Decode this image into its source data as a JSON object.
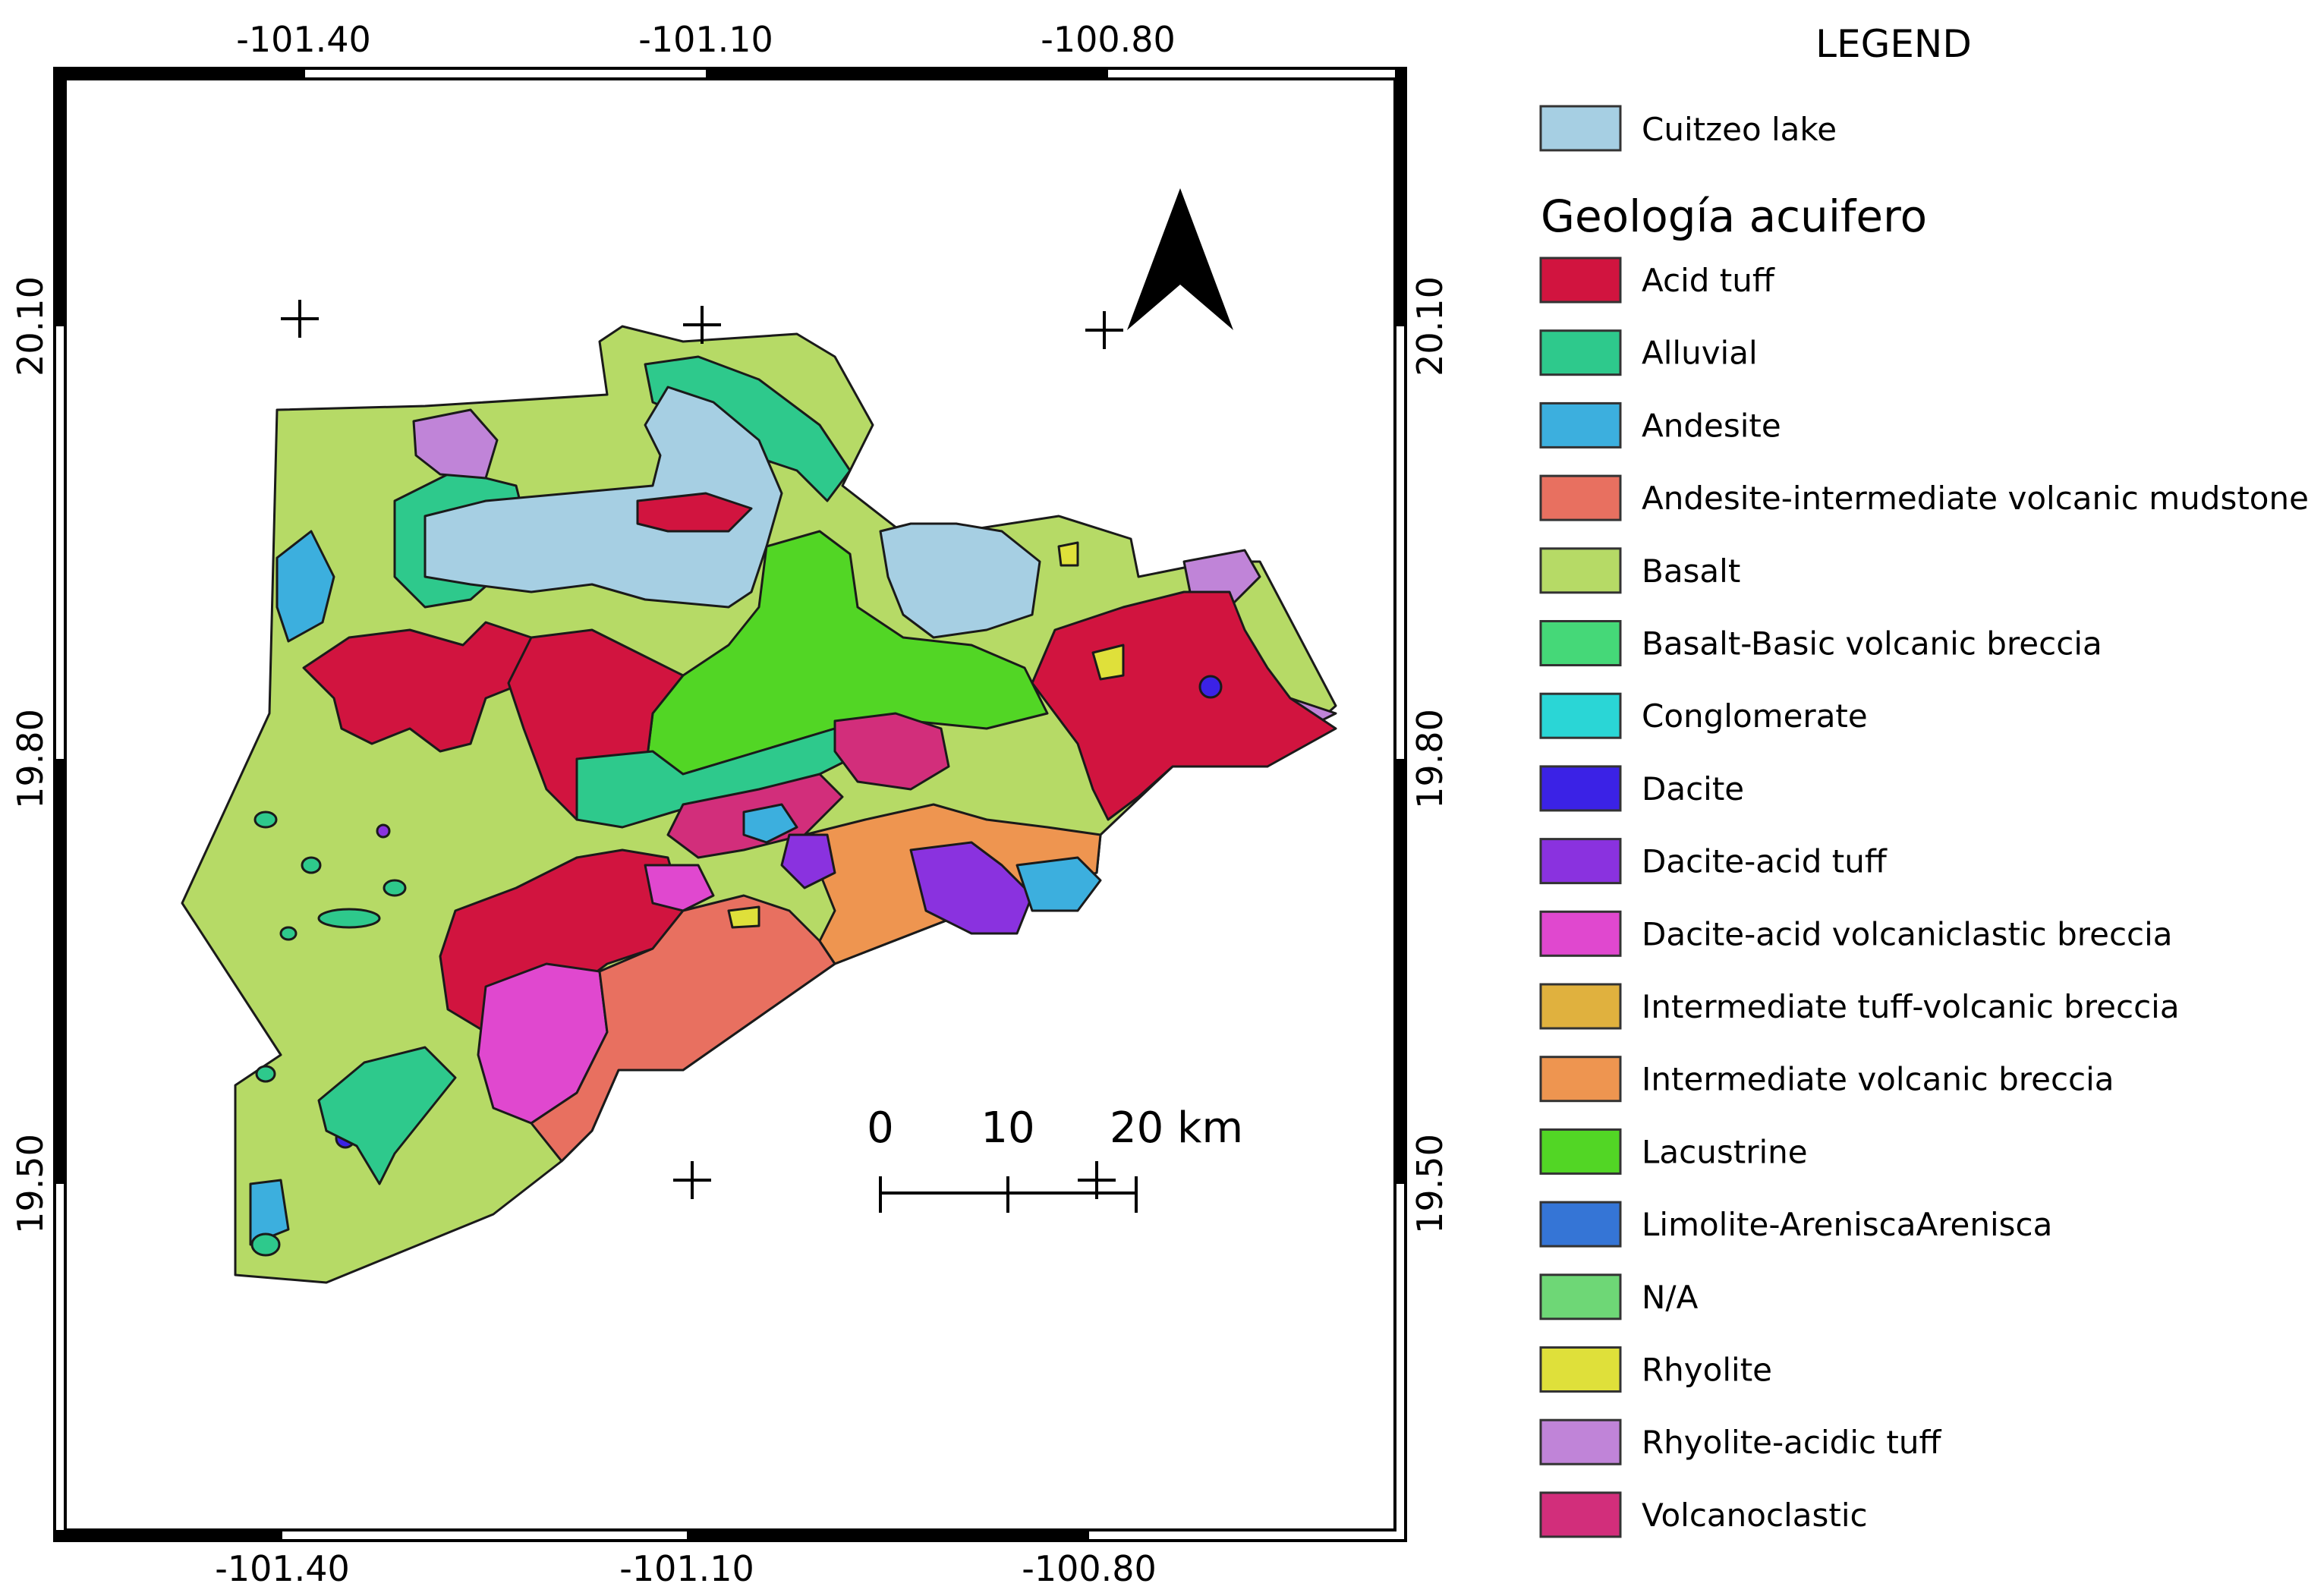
{
  "map": {
    "top_ticks": [
      "-101.40",
      "-101.10",
      "-100.80"
    ],
    "bottom_ticks": [
      "-101.40",
      "-101.10",
      "-100.80"
    ],
    "left_ticks": [
      "20.10",
      "19.80",
      "19.50"
    ],
    "right_ticks": [
      "20.10",
      "19.80",
      "19.50"
    ],
    "scale_bar": {
      "labels": [
        "0",
        "10",
        "20 km"
      ]
    },
    "north_arrow_icon": "north-arrow-icon"
  },
  "legend": {
    "title": "LEGEND",
    "lake": {
      "label": "Cuitzeo lake",
      "color": "#a6cfe3"
    },
    "group_title": "Geología acuifero",
    "items": [
      {
        "label": "Acid tuff",
        "color": "#d1143f"
      },
      {
        "label": "Alluvial",
        "color": "#2ec98c"
      },
      {
        "label": "Andesite",
        "color": "#3cafde"
      },
      {
        "label": "Andesite-intermediate volcanic mudstone",
        "color": "#e87060"
      },
      {
        "label": "Basalt",
        "color": "#b6da66"
      },
      {
        "label": "Basalt-Basic volcanic breccia",
        "color": "#45d878"
      },
      {
        "label": "Conglomerate",
        "color": "#2ad6d6"
      },
      {
        "label": "Dacite",
        "color": "#3b22e6"
      },
      {
        "label": "Dacite-acid tuff",
        "color": "#8a32df"
      },
      {
        "label": "Dacite-acid volcaniclastic breccia",
        "color": "#e048cf"
      },
      {
        "label": "Intermediate tuff-volcanic breccia",
        "color": "#e0b13e"
      },
      {
        "label": "Intermediate volcanic breccia",
        "color": "#ee9550"
      },
      {
        "label": "Lacustrine",
        "color": "#52d625"
      },
      {
        "label": "Limolite-AreniscaArenisca",
        "color": "#3575d6"
      },
      {
        "label": "N/A",
        "color": "#6ed776"
      },
      {
        "label": "Rhyolite",
        "color": "#dfe03a"
      },
      {
        "label": "Rhyolite-acidic tuff",
        "color": "#c084d8"
      },
      {
        "label": "Volcanoclastic",
        "color": "#d22e7b"
      }
    ]
  }
}
